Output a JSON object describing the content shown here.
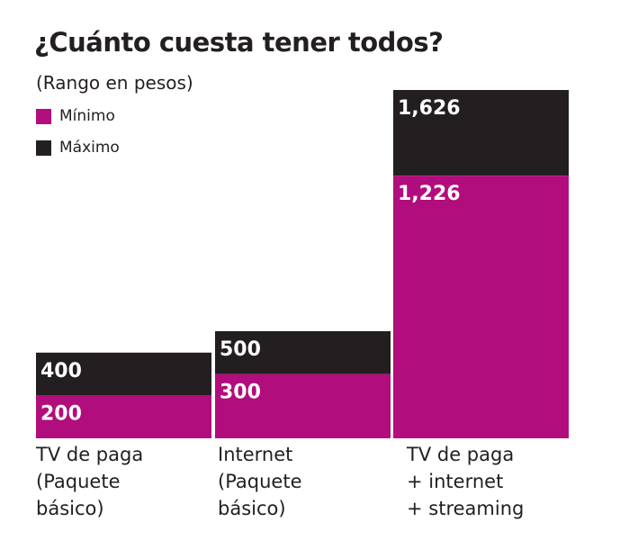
{
  "chart_data": {
    "type": "bar",
    "title": "¿Cuánto cuesta tener todos?",
    "subtitle": "(Rango en pesos)",
    "categories": [
      [
        "TV de paga",
        "(Paquete",
        "básico)"
      ],
      [
        "Internet",
        "(Paquete",
        "básico)"
      ],
      [
        "TV de paga",
        "+ internet",
        "+ streaming"
      ]
    ],
    "series": [
      {
        "name": "Mínimo",
        "color": "#b20d7c",
        "values": [
          200,
          300,
          1226
        ],
        "labels": [
          "200",
          "300",
          "1,226"
        ]
      },
      {
        "name": "Máximo",
        "color": "#231f20",
        "values": [
          400,
          500,
          1626
        ],
        "labels": [
          "400",
          "500",
          "1,626"
        ]
      }
    ],
    "ylim": [
      0,
      1626
    ],
    "grid": false,
    "legend": "top-left"
  }
}
